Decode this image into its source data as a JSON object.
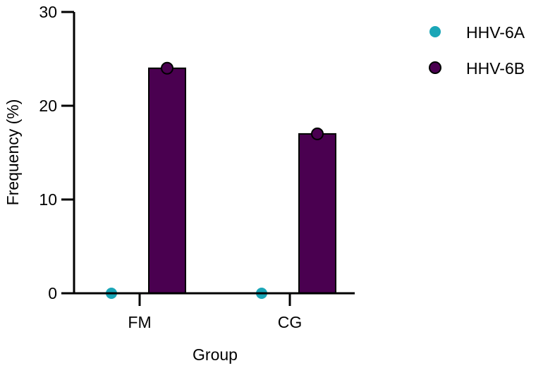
{
  "chart_data": {
    "type": "bar",
    "title": "",
    "xlabel": "Group",
    "ylabel": "Frequency (%)",
    "categories": [
      "FM",
      "CG"
    ],
    "ylim": [
      0,
      30
    ],
    "yticks": [
      0,
      10,
      20,
      30
    ],
    "grid": false,
    "legend_position": "top-right",
    "series": [
      {
        "name": "HHV-6A",
        "values": [
          0,
          0
        ],
        "color": "#1aa6b7",
        "marker": "circle"
      },
      {
        "name": "HHV-6B",
        "values": [
          24,
          17
        ],
        "color": "#4a0050",
        "marker": "circle"
      }
    ]
  }
}
